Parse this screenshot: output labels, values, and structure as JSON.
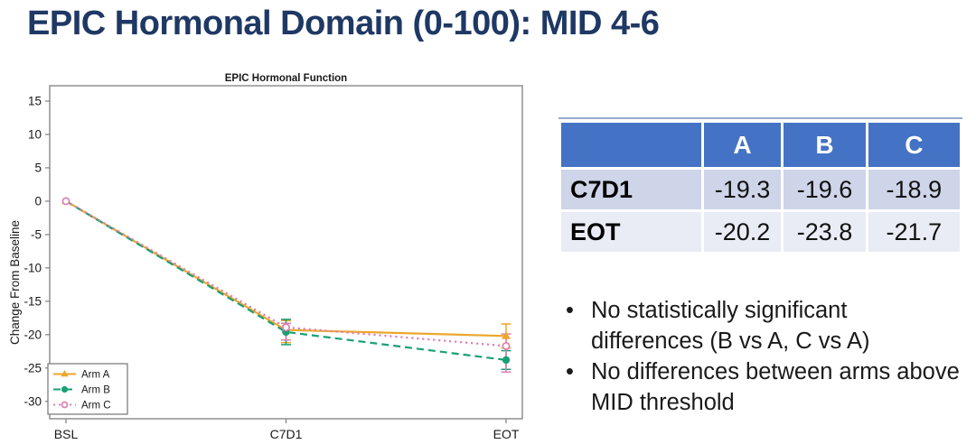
{
  "slide_title": "EPIC Hormonal Domain (0-100): MID 4-6",
  "colors": {
    "title_text": "#1F3864",
    "table_header_bg": "#4472C4",
    "table_row1_bg": "#CED5E8",
    "table_row2_bg": "#E9EBF5",
    "arm_a": "#ECA72C",
    "arm_b": "#18A077",
    "arm_c": "#DB80B5",
    "plot_border": "#7f7f7f"
  },
  "chart_data": {
    "type": "line",
    "title": "EPIC Hormonal Function",
    "xlabel": "",
    "ylabel": "Change From Baseline",
    "categories": [
      "BSL",
      "C7D1",
      "EOT"
    ],
    "y_ticks": [
      15,
      10,
      5,
      0,
      -5,
      -10,
      -15,
      -20,
      -25,
      -30
    ],
    "ylim": [
      -32.6,
      17.3
    ],
    "grid": false,
    "legend_position": "bottom-left-inside",
    "series": [
      {
        "name": "Arm A",
        "color": "#ECA72C",
        "line_style": "solid",
        "marker": "triangle",
        "values": [
          0,
          -19.3,
          -20.2
        ],
        "error_low": [
          null,
          -21.2,
          -22.0
        ],
        "error_high": [
          null,
          -17.9,
          -18.4
        ]
      },
      {
        "name": "Arm B",
        "color": "#18A077",
        "line_style": "dashed",
        "marker": "circle",
        "values": [
          0,
          -19.6,
          -23.8
        ],
        "error_low": [
          null,
          -21.5,
          -25.2
        ],
        "error_high": [
          null,
          -17.7,
          -22.4
        ]
      },
      {
        "name": "Arm C",
        "color": "#DB80B5",
        "line_style": "dotted",
        "marker": "open-circle",
        "values": [
          0,
          -18.9,
          -21.7
        ],
        "error_low": [
          null,
          -20.8,
          -25.6
        ],
        "error_high": [
          null,
          -18.3,
          -19.9
        ]
      }
    ]
  },
  "table": {
    "columns": [
      "A",
      "B",
      "C"
    ],
    "rows": [
      {
        "label": "C7D1",
        "values": [
          "-19.3",
          "-19.6",
          "-18.9"
        ]
      },
      {
        "label": "EOT",
        "values": [
          "-20.2",
          "-23.8",
          "-21.7"
        ]
      }
    ]
  },
  "bullets": [
    "No statistically significant differences (B vs A, C vs A)",
    "No differences between arms above MID threshold"
  ]
}
